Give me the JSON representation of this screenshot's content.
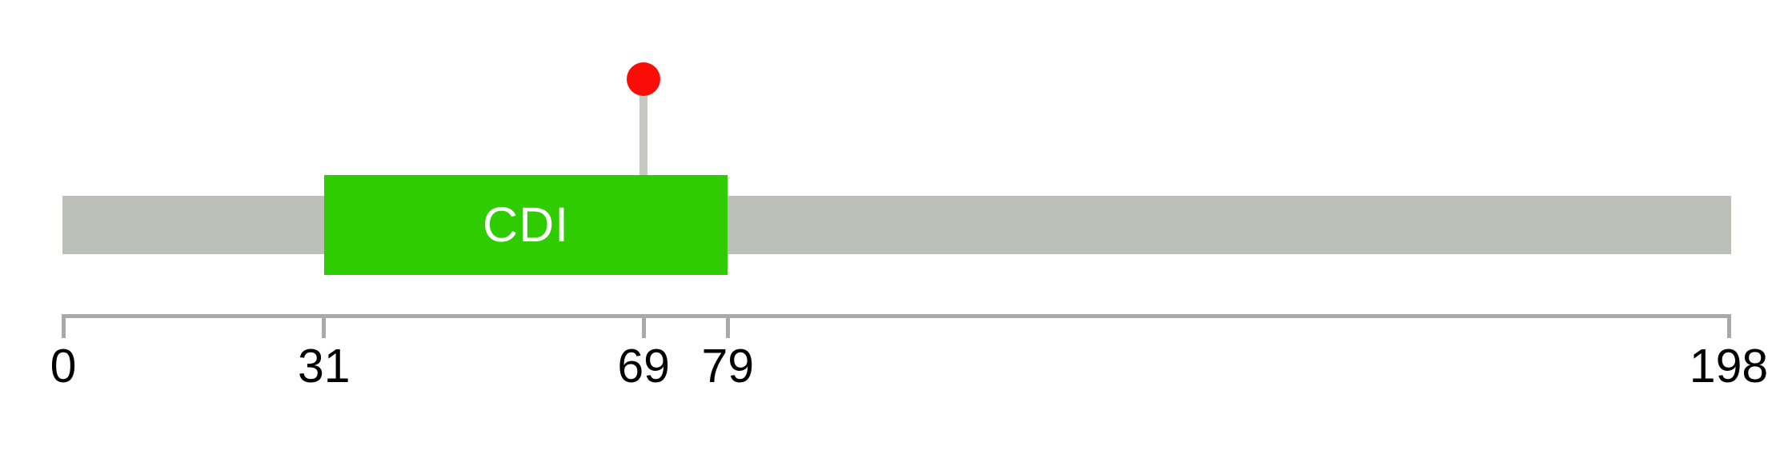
{
  "chart_data": {
    "type": "bar",
    "variant": "bullet-gauge",
    "title": "",
    "xlabel": "",
    "ylabel": "",
    "axis": {
      "min": 0,
      "max": 198,
      "ticks": [
        0,
        31,
        69,
        79,
        198
      ],
      "tick_labels": [
        "0",
        "31",
        "69",
        "79",
        "198"
      ],
      "line_color": "#A9A9A9",
      "label_color": "#000000"
    },
    "track": {
      "start": 0,
      "end": 198,
      "color": "#BCBEB8"
    },
    "band": {
      "label": "CDI",
      "start": 31,
      "end": 79,
      "color": "#2FCC02",
      "label_color": "#FFFFFF"
    },
    "marker": {
      "value": 69,
      "shape": "circle-pin",
      "dot_color": "#FB0D07",
      "stem_color": "#C5C7C1"
    },
    "grid": false,
    "legend": false
  }
}
